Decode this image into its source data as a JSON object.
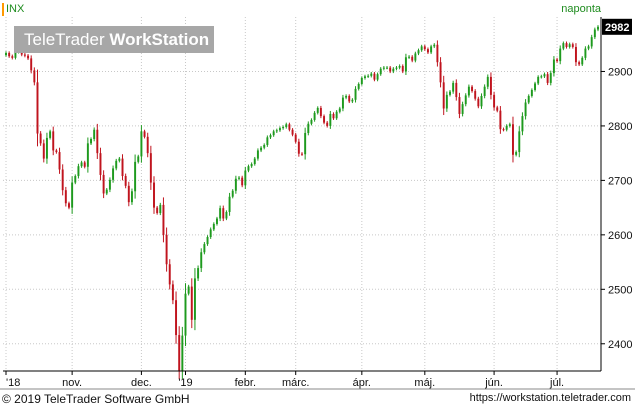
{
  "header": {
    "symbol": "INX",
    "frequency": "naponta",
    "brand_light": "TeleTrader ",
    "brand_bold": "WorkStation"
  },
  "footer": {
    "copyright": "© 2019 TeleTrader Software GmbH",
    "url": "https://workstation.teletrader.com"
  },
  "colors": {
    "up": "#1e9a1e",
    "down": "#c0141e",
    "grid": "#c8c8c8",
    "axis": "#000000",
    "last_price_bg": "#000000"
  },
  "chart_data": {
    "type": "candlestick",
    "title": "",
    "grid": true,
    "ylim": [
      2350,
      3000
    ],
    "y_ticks": [
      2400,
      2500,
      2600,
      2700,
      2800,
      2900
    ],
    "x_ticks": [
      {
        "label": "'18",
        "index": 0
      },
      {
        "label": "nov.",
        "index": 21
      },
      {
        "label": "dec.",
        "index": 43
      },
      {
        "label": "'19",
        "index": 57
      },
      {
        "label": "febr.",
        "index": 76
      },
      {
        "label": "márc.",
        "index": 92
      },
      {
        "label": "ápr.",
        "index": 113
      },
      {
        "label": "máj.",
        "index": 133
      },
      {
        "label": "jún.",
        "index": 155
      },
      {
        "label": "júl.",
        "index": 175
      }
    ],
    "last_price_label": "2982",
    "last_value": 2982,
    "close": [
      2934,
      2928,
      2925,
      2936,
      2939,
      2931,
      2929,
      2924,
      2902,
      2880,
      2786,
      2768,
      2740,
      2778,
      2790,
      2755,
      2752,
      2720,
      2682,
      2658,
      2650,
      2696,
      2708,
      2726,
      2733,
      2725,
      2768,
      2776,
      2793,
      2750,
      2710,
      2676,
      2683,
      2701,
      2722,
      2736,
      2740,
      2708,
      2690,
      2660,
      2680,
      2734,
      2744,
      2790,
      2780,
      2750,
      2696,
      2650,
      2640,
      2655,
      2600,
      2546,
      2509,
      2480,
      2416,
      2351,
      2415,
      2492,
      2505,
      2444,
      2520,
      2539,
      2568,
      2583,
      2596,
      2610,
      2620,
      2630,
      2649,
      2630,
      2642,
      2670,
      2681,
      2703,
      2705,
      2691,
      2718,
      2726,
      2730,
      2740,
      2755,
      2760,
      2765,
      2779,
      2783,
      2790,
      2792,
      2796,
      2798,
      2803,
      2793,
      2784,
      2771,
      2749,
      2748,
      2787,
      2804,
      2811,
      2824,
      2833,
      2818,
      2806,
      2800,
      2822,
      2814,
      2826,
      2832,
      2852,
      2855,
      2845,
      2848,
      2868,
      2877,
      2888,
      2891,
      2892,
      2896,
      2885,
      2895,
      2905,
      2907,
      2907,
      2900,
      2905,
      2907,
      2910,
      2900,
      2926,
      2927,
      2920,
      2933,
      2939,
      2946,
      2941,
      2935,
      2946,
      2949,
      2917,
      2880,
      2832,
      2857,
      2863,
      2879,
      2853,
      2822,
      2840,
      2856,
      2872,
      2864,
      2850,
      2836,
      2855,
      2872,
      2890,
      2857,
      2834,
      2828,
      2794,
      2793,
      2800,
      2803,
      2747,
      2752,
      2790,
      2818,
      2843,
      2855,
      2866,
      2878,
      2890,
      2891,
      2895,
      2879,
      2897,
      2922,
      2919,
      2942,
      2952,
      2945,
      2950,
      2945,
      2917,
      2913,
      2925,
      2942,
      2946,
      2963,
      2977,
      2982
    ]
  }
}
